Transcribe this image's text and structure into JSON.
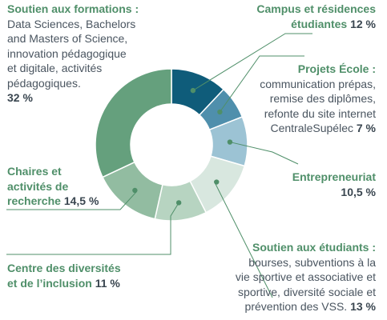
{
  "chart_data": {
    "type": "donut",
    "slices": [
      {
        "label": "Campus et résidences étudiantes",
        "value": 12,
        "color": "#0f5c7a"
      },
      {
        "label": "Projets École",
        "value": 7,
        "color": "#4f8fac"
      },
      {
        "label": "Entrepreneuriat",
        "value": 10.5,
        "color": "#9cc3d4"
      },
      {
        "label": "Soutien aux étudiants",
        "value": 13,
        "color": "#d8e7df"
      },
      {
        "label": "Centre des diversités et de l’inclusion",
        "value": 11,
        "color": "#b7d4c1"
      },
      {
        "label": "Chaires et activités de recherche",
        "value": 14.5,
        "color": "#92bca1"
      },
      {
        "label": "Soutien aux formations",
        "value": 32,
        "color": "#65a07d"
      }
    ]
  },
  "labels": {
    "formations": {
      "title": "Soutien aux formations :",
      "body": [
        "Data Sciences, Bachelors",
        "and Masters of Science,",
        "innovation pédagogique",
        "et digitale, activités",
        "pédagogiques."
      ],
      "pct": "32 %"
    },
    "campus": {
      "line1": "Campus et résidences",
      "line2": "étudiantes",
      "pct": "12 %"
    },
    "projets": {
      "title": "Projets École :",
      "body": [
        "communication prépas,",
        "remise des diplômes,",
        "refonte du site internet"
      ],
      "last": "CentraleSupélec",
      "pct": "7 %"
    },
    "entrepreneuriat": {
      "title": "Entrepreneuriat",
      "pct": "10,5 %"
    },
    "etudiants": {
      "title": "Soutien aux étudiants :",
      "body": [
        "bourses, subventions à la",
        "vie sportive et associative et",
        "sportive, diversité sociale et"
      ],
      "last": "prévention des VSS.",
      "pct": "13 %"
    },
    "diversites": {
      "line1": "Centre des diversités",
      "line2": "et de l’inclusion",
      "pct": "11 %"
    },
    "chaires": {
      "line1": "Chaires et",
      "line2": "activités de",
      "line3": "recherche",
      "pct": "14,5 %"
    }
  }
}
